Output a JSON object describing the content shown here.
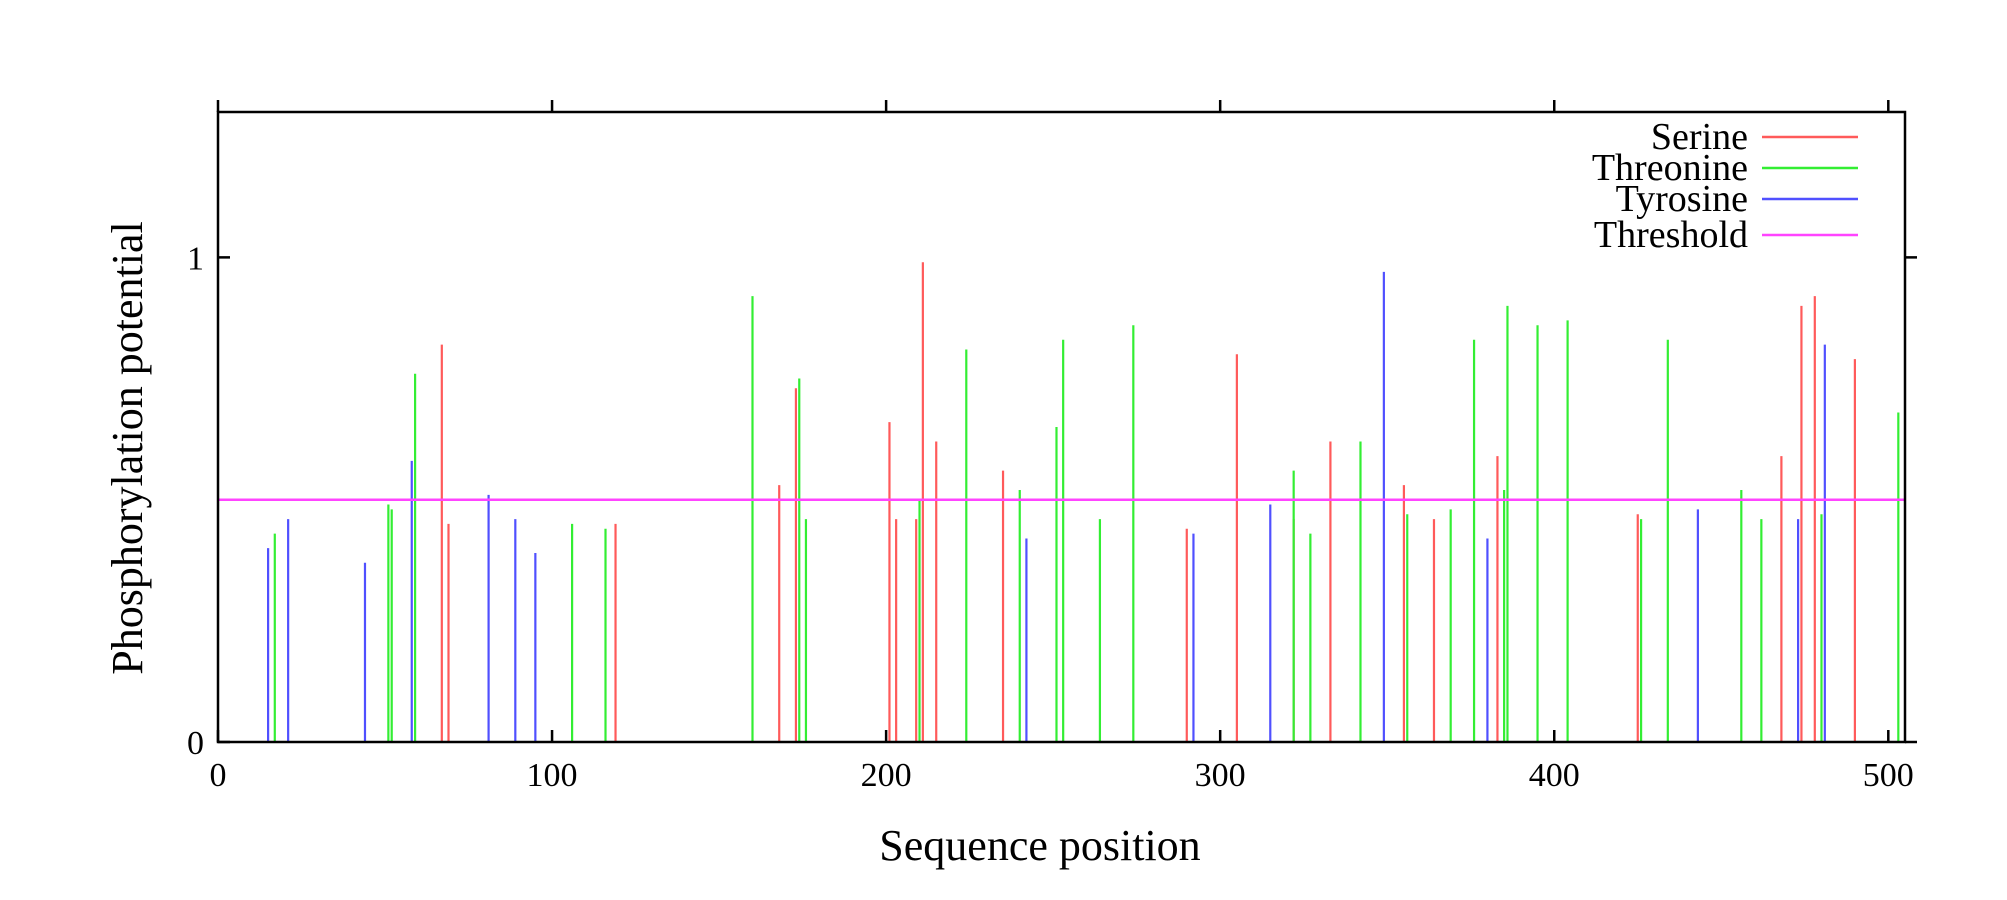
{
  "chart_data": {
    "type": "bar",
    "xlabel": "Sequence  position",
    "ylabel": "Phosphorylation  potential",
    "xlim": [
      0,
      505
    ],
    "ylim": [
      0,
      1.3
    ],
    "xticks": [
      0,
      100,
      200,
      300,
      400,
      500
    ],
    "xtick_labels": [
      "0",
      "100",
      "200",
      "300",
      "400",
      "500"
    ],
    "yticks": [
      0,
      1
    ],
    "ytick_labels": [
      "0",
      "1"
    ],
    "grid": false,
    "legend_position": "top-right",
    "threshold": {
      "name": "Threshold",
      "value": 0.5,
      "color": "#ff44ff"
    },
    "series": [
      {
        "name": "Serine",
        "color": "#ff5a5a",
        "points": [
          [
            67,
            0.82
          ],
          [
            69,
            0.45
          ],
          [
            119,
            0.45
          ],
          [
            168,
            0.53
          ],
          [
            173,
            0.73
          ],
          [
            201,
            0.66
          ],
          [
            203,
            0.46
          ],
          [
            209,
            0.46
          ],
          [
            211,
            0.99
          ],
          [
            215,
            0.62
          ],
          [
            235,
            0.56
          ],
          [
            290,
            0.44
          ],
          [
            305,
            0.8
          ],
          [
            322,
            0.46
          ],
          [
            333,
            0.62
          ],
          [
            355,
            0.53
          ],
          [
            364,
            0.46
          ],
          [
            383,
            0.59
          ],
          [
            425,
            0.47
          ],
          [
            468,
            0.59
          ],
          [
            474,
            0.9
          ],
          [
            478,
            0.92
          ],
          [
            490,
            0.79
          ]
        ]
      },
      {
        "name": "Threonine",
        "color": "#33ee33",
        "points": [
          [
            17,
            0.43
          ],
          [
            51,
            0.49
          ],
          [
            52,
            0.48
          ],
          [
            59,
            0.76
          ],
          [
            106,
            0.45
          ],
          [
            116,
            0.44
          ],
          [
            160,
            0.92
          ],
          [
            174,
            0.75
          ],
          [
            176,
            0.46
          ],
          [
            210,
            0.5
          ],
          [
            224,
            0.81
          ],
          [
            240,
            0.52
          ],
          [
            251,
            0.65
          ],
          [
            253,
            0.83
          ],
          [
            264,
            0.46
          ],
          [
            274,
            0.86
          ],
          [
            322,
            0.56
          ],
          [
            327,
            0.43
          ],
          [
            342,
            0.62
          ],
          [
            356,
            0.47
          ],
          [
            369,
            0.48
          ],
          [
            376,
            0.83
          ],
          [
            385,
            0.52
          ],
          [
            386,
            0.9
          ],
          [
            395,
            0.86
          ],
          [
            404,
            0.87
          ],
          [
            426,
            0.46
          ],
          [
            434,
            0.83
          ],
          [
            456,
            0.52
          ],
          [
            462,
            0.46
          ],
          [
            480,
            0.47
          ],
          [
            503,
            0.68
          ]
        ]
      },
      {
        "name": "Tyrosine",
        "color": "#5050ff",
        "points": [
          [
            15,
            0.4
          ],
          [
            21,
            0.46
          ],
          [
            44,
            0.37
          ],
          [
            58,
            0.58
          ],
          [
            81,
            0.51
          ],
          [
            89,
            0.46
          ],
          [
            95,
            0.39
          ],
          [
            242,
            0.42
          ],
          [
            292,
            0.43
          ],
          [
            315,
            0.49
          ],
          [
            349,
            0.97
          ],
          [
            380,
            0.42
          ],
          [
            443,
            0.48
          ],
          [
            473,
            0.46
          ],
          [
            481,
            0.82
          ]
        ]
      }
    ]
  }
}
